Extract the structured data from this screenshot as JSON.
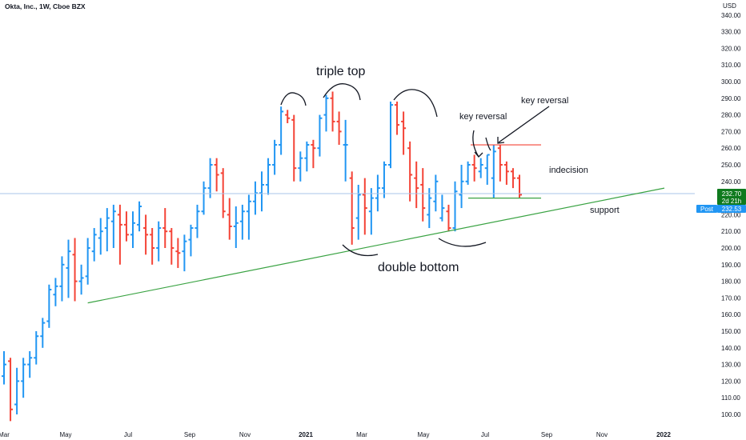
{
  "header": {
    "title": "Okta, Inc., 1W, Cboe BZX",
    "currency": "USD",
    "currency_color": "#131722"
  },
  "price_scale": {
    "ticks": [
      "340.00",
      "330.00",
      "320.00",
      "310.00",
      "300.00",
      "290.00",
      "280.00",
      "270.00",
      "260.00",
      "250.00",
      "240.00",
      "230.00",
      "220.00",
      "210.00",
      "200.00",
      "190.00",
      "180.00",
      "170.00",
      "160.00",
      "150.00",
      "140.00",
      "130.00",
      "120.00",
      "110.00",
      "100.00"
    ],
    "last_price": "232.70",
    "countdown": "2d 21h",
    "post_label": "Post",
    "post_price": "232.53",
    "last_color": "#0f7a1e",
    "post_color": "#2196f3"
  },
  "time_axis": [
    "Mar",
    "May",
    "Jul",
    "Sep",
    "Nov",
    "2021",
    "Mar",
    "May",
    "Jul",
    "Sep",
    "Nov",
    "2022"
  ],
  "annotations": {
    "triple_top": "triple top",
    "double_bottom": "double bottom",
    "key_reversal_1": "key reversal",
    "key_reversal_2": "key reversal",
    "indecision": "indecision",
    "support": "support"
  },
  "colors": {
    "up": "#2196f3",
    "down": "#f44336",
    "support": "#3aa343",
    "resistance": "#f44336",
    "price_line": "#a9c6ea"
  },
  "chart_data": {
    "type": "ohlc",
    "interval": "1W",
    "ylim": [
      95,
      347
    ],
    "bars": [
      [
        123,
        138,
        118,
        130
      ],
      [
        132,
        134,
        96,
        103
      ],
      [
        106,
        128,
        100,
        120
      ],
      [
        120,
        134,
        110,
        130
      ],
      [
        130,
        138,
        122,
        134
      ],
      [
        134,
        150,
        130,
        147
      ],
      [
        147,
        158,
        140,
        155
      ],
      [
        156,
        178,
        152,
        175
      ],
      [
        172,
        182,
        165,
        177
      ],
      [
        177,
        195,
        168,
        190
      ],
      [
        188,
        205,
        170,
        198
      ],
      [
        196,
        206,
        168,
        180
      ],
      [
        180,
        190,
        172,
        182
      ],
      [
        183,
        206,
        178,
        200
      ],
      [
        198,
        212,
        192,
        208
      ],
      [
        206,
        218,
        196,
        210
      ],
      [
        212,
        224,
        198,
        218
      ],
      [
        216,
        226,
        200,
        222
      ],
      [
        220,
        226,
        190,
        214
      ],
      [
        214,
        222,
        204,
        208
      ],
      [
        208,
        222,
        200,
        215
      ],
      [
        214,
        228,
        210,
        225
      ],
      [
        212,
        220,
        196,
        208
      ],
      [
        208,
        212,
        190,
        200
      ],
      [
        200,
        216,
        192,
        212
      ],
      [
        212,
        224,
        200,
        210
      ],
      [
        210,
        212,
        190,
        200
      ],
      [
        198,
        206,
        188,
        197
      ],
      [
        198,
        208,
        186,
        204
      ],
      [
        205,
        214,
        195,
        212
      ],
      [
        212,
        226,
        206,
        222
      ],
      [
        222,
        240,
        220,
        236
      ],
      [
        236,
        254,
        230,
        250
      ],
      [
        250,
        254,
        234,
        244
      ],
      [
        245,
        248,
        218,
        222
      ],
      [
        220,
        230,
        205,
        213
      ],
      [
        213,
        225,
        200,
        215
      ],
      [
        216,
        226,
        205,
        222
      ],
      [
        222,
        232,
        205,
        228
      ],
      [
        228,
        240,
        220,
        233
      ],
      [
        233,
        246,
        222,
        238
      ],
      [
        238,
        254,
        232,
        250
      ],
      [
        250,
        265,
        244,
        262
      ],
      [
        262,
        285,
        256,
        282
      ],
      [
        280,
        283,
        275,
        278
      ],
      [
        277,
        280,
        240,
        248
      ],
      [
        248,
        258,
        240,
        254
      ],
      [
        254,
        264,
        246,
        262
      ],
      [
        262,
        265,
        248,
        260
      ],
      [
        260,
        280,
        255,
        278
      ],
      [
        280,
        292,
        270,
        290
      ],
      [
        290,
        294,
        270,
        276
      ],
      [
        276,
        282,
        262,
        270
      ],
      [
        262,
        277,
        240,
        262
      ],
      [
        242,
        246,
        202,
        212
      ],
      [
        218,
        238,
        205,
        232
      ],
      [
        232,
        242,
        208,
        224
      ],
      [
        222,
        236,
        208,
        230
      ],
      [
        230,
        244,
        222,
        236
      ],
      [
        236,
        252,
        230,
        250
      ],
      [
        250,
        288,
        248,
        286
      ],
      [
        286,
        288,
        268,
        274
      ],
      [
        276,
        282,
        256,
        272
      ],
      [
        260,
        264,
        228,
        244
      ],
      [
        242,
        252,
        224,
        236
      ],
      [
        238,
        248,
        216,
        224
      ],
      [
        220,
        236,
        212,
        230
      ],
      [
        228,
        244,
        222,
        240
      ],
      [
        218,
        232,
        216,
        224
      ],
      [
        222,
        226,
        210,
        212
      ],
      [
        212,
        240,
        210,
        234
      ],
      [
        232,
        250,
        224,
        240
      ],
      [
        240,
        252,
        238,
        250
      ],
      [
        250,
        256,
        240,
        248
      ],
      [
        246,
        254,
        242,
        250
      ],
      [
        248,
        256,
        238,
        256
      ],
      [
        242,
        262,
        230,
        258
      ],
      [
        260,
        262,
        240,
        250
      ],
      [
        250,
        252,
        238,
        246
      ],
      [
        246,
        248,
        236,
        242
      ],
      [
        242,
        244,
        230,
        232
      ]
    ]
  }
}
